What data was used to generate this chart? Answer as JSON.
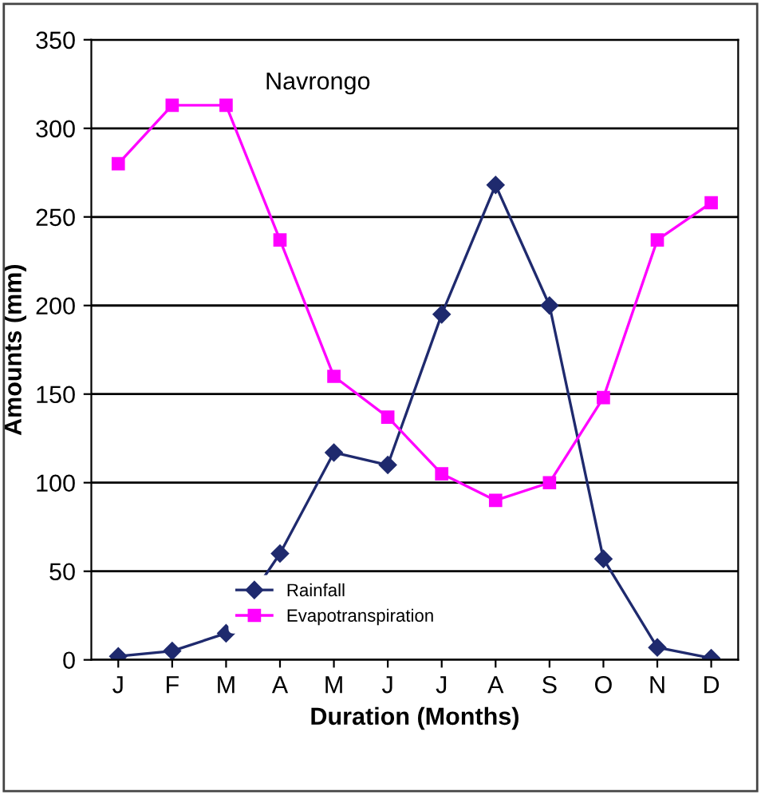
{
  "chart_data": {
    "type": "line",
    "title": "Navrongo",
    "xlabel": "Duration (Months)",
    "ylabel": "Amounts (mm)",
    "categories": [
      "J",
      "F",
      "M",
      "A",
      "M",
      "J",
      "J",
      "A",
      "S",
      "O",
      "N",
      "D"
    ],
    "series": [
      {
        "name": "Rainfall",
        "color": "#1f2a6e",
        "marker": "diamond",
        "values": [
          2,
          5,
          15,
          60,
          117,
          110,
          195,
          268,
          200,
          57,
          7,
          1
        ]
      },
      {
        "name": "Evapotranspiration",
        "color": "#ff00ff",
        "marker": "square",
        "values": [
          280,
          313,
          313,
          237,
          160,
          137,
          105,
          90,
          100,
          148,
          237,
          258
        ]
      }
    ],
    "ylim": [
      0,
      350
    ],
    "yticks": [
      0,
      50,
      100,
      150,
      200,
      250,
      300,
      350
    ],
    "grid": "y",
    "legend": "bottom left",
    "line_style": "solid"
  }
}
